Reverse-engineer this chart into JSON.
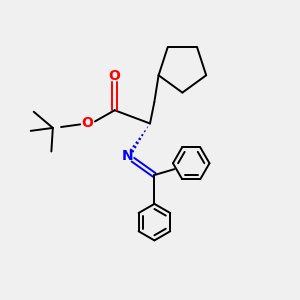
{
  "background_color": "#f0f0f0",
  "bond_color": "#000000",
  "nitrogen_color": "#0000ff",
  "oxygen_color": "#ff0000",
  "line_width": 1.4,
  "figsize": [
    3.0,
    3.0
  ],
  "dpi": 100,
  "xlim": [
    0,
    10
  ],
  "ylim": [
    0,
    10
  ]
}
